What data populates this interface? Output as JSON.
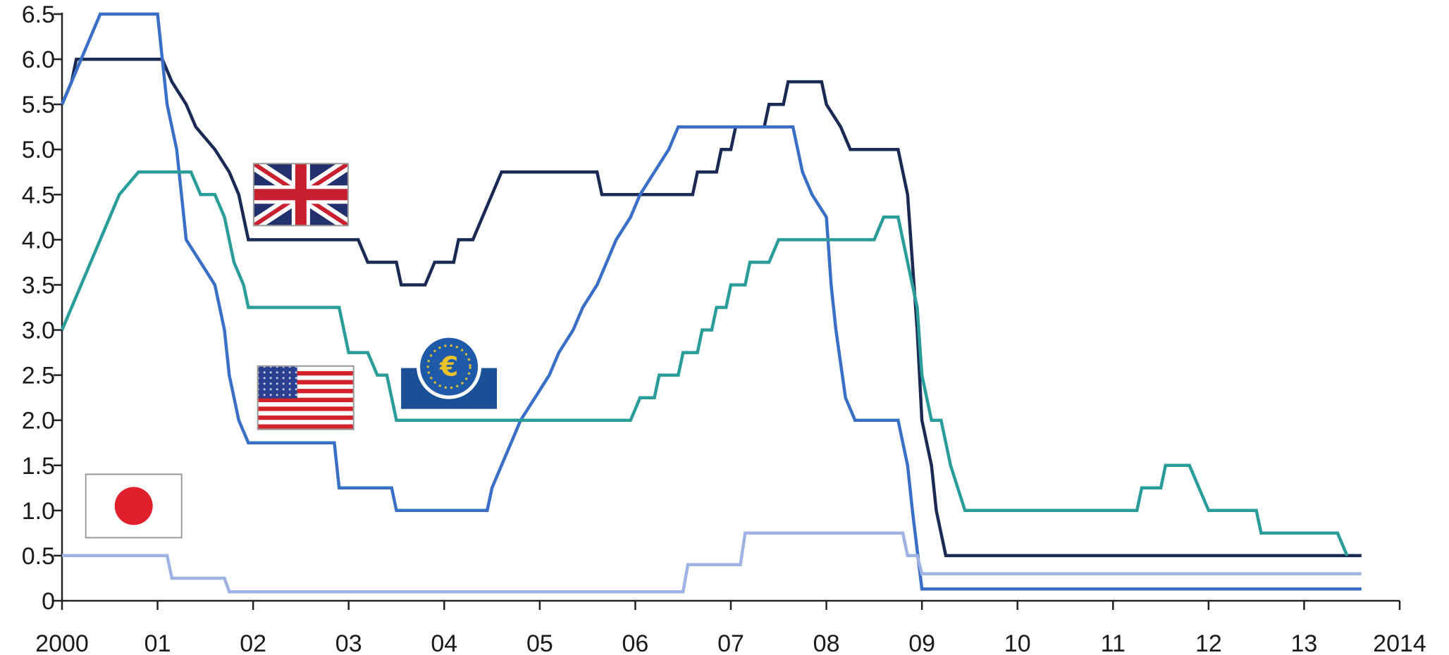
{
  "chart_data": {
    "type": "line",
    "title": "",
    "xlabel": "",
    "ylabel": "",
    "xlim": [
      2000,
      2014
    ],
    "ylim": [
      0,
      6.5
    ],
    "grid": false,
    "legend": "flag icons placed beside the lines",
    "y_ticks": [
      "0",
      "0.5",
      "1.0",
      "1.5",
      "2.0",
      "2.5",
      "3.0",
      "3.5",
      "4.0",
      "4.5",
      "5.0",
      "5.5",
      "6.0",
      "6.5"
    ],
    "x_ticks": [
      {
        "label": "2000",
        "x": 2000
      },
      {
        "label": "01",
        "x": 2001
      },
      {
        "label": "02",
        "x": 2002
      },
      {
        "label": "03",
        "x": 2003
      },
      {
        "label": "04",
        "x": 2004
      },
      {
        "label": "05",
        "x": 2005
      },
      {
        "label": "06",
        "x": 2006
      },
      {
        "label": "07",
        "x": 2007
      },
      {
        "label": "08",
        "x": 2008
      },
      {
        "label": "09",
        "x": 2009
      },
      {
        "label": "10",
        "x": 2010
      },
      {
        "label": "11",
        "x": 2011
      },
      {
        "label": "12",
        "x": 2012
      },
      {
        "label": "13",
        "x": 2013
      },
      {
        "label": "2014",
        "x": 2014
      }
    ],
    "series": [
      {
        "key": "uk",
        "color": "#1b2a55",
        "icon": "uk-flag-icon",
        "points": [
          [
            2000.0,
            5.5
          ],
          [
            2000.1,
            5.75
          ],
          [
            2000.15,
            6.0
          ],
          [
            2001.05,
            6.0
          ],
          [
            2001.15,
            5.75
          ],
          [
            2001.3,
            5.5
          ],
          [
            2001.4,
            5.25
          ],
          [
            2001.6,
            5.0
          ],
          [
            2001.75,
            4.75
          ],
          [
            2001.85,
            4.5
          ],
          [
            2001.9,
            4.25
          ],
          [
            2001.95,
            4.0
          ],
          [
            2003.1,
            4.0
          ],
          [
            2003.2,
            3.75
          ],
          [
            2003.5,
            3.75
          ],
          [
            2003.55,
            3.5
          ],
          [
            2003.8,
            3.5
          ],
          [
            2003.9,
            3.75
          ],
          [
            2004.1,
            3.75
          ],
          [
            2004.15,
            4.0
          ],
          [
            2004.3,
            4.0
          ],
          [
            2004.4,
            4.25
          ],
          [
            2004.5,
            4.5
          ],
          [
            2004.6,
            4.75
          ],
          [
            2005.6,
            4.75
          ],
          [
            2005.65,
            4.5
          ],
          [
            2006.6,
            4.5
          ],
          [
            2006.65,
            4.75
          ],
          [
            2006.85,
            4.75
          ],
          [
            2006.9,
            5.0
          ],
          [
            2007.0,
            5.0
          ],
          [
            2007.05,
            5.25
          ],
          [
            2007.35,
            5.25
          ],
          [
            2007.4,
            5.5
          ],
          [
            2007.55,
            5.5
          ],
          [
            2007.6,
            5.75
          ],
          [
            2007.95,
            5.75
          ],
          [
            2008.0,
            5.5
          ],
          [
            2008.15,
            5.25
          ],
          [
            2008.25,
            5.0
          ],
          [
            2008.75,
            5.0
          ],
          [
            2008.85,
            4.5
          ],
          [
            2008.95,
            3.0
          ],
          [
            2009.0,
            2.0
          ],
          [
            2009.1,
            1.5
          ],
          [
            2009.15,
            1.0
          ],
          [
            2009.25,
            0.5
          ],
          [
            2013.6,
            0.5
          ]
        ]
      },
      {
        "key": "us",
        "color": "#3a6fc6",
        "icon": "us-flag-icon",
        "points": [
          [
            2000.0,
            5.5
          ],
          [
            2000.1,
            5.75
          ],
          [
            2000.2,
            6.0
          ],
          [
            2000.3,
            6.25
          ],
          [
            2000.4,
            6.5
          ],
          [
            2001.0,
            6.5
          ],
          [
            2001.05,
            6.0
          ],
          [
            2001.1,
            5.5
          ],
          [
            2001.2,
            5.0
          ],
          [
            2001.25,
            4.5
          ],
          [
            2001.3,
            4.0
          ],
          [
            2001.45,
            3.75
          ],
          [
            2001.6,
            3.5
          ],
          [
            2001.7,
            3.0
          ],
          [
            2001.75,
            2.5
          ],
          [
            2001.85,
            2.0
          ],
          [
            2001.95,
            1.75
          ],
          [
            2002.85,
            1.75
          ],
          [
            2002.9,
            1.25
          ],
          [
            2003.45,
            1.25
          ],
          [
            2003.5,
            1.0
          ],
          [
            2004.45,
            1.0
          ],
          [
            2004.5,
            1.25
          ],
          [
            2004.6,
            1.5
          ],
          [
            2004.7,
            1.75
          ],
          [
            2004.8,
            2.0
          ],
          [
            2004.95,
            2.25
          ],
          [
            2005.1,
            2.5
          ],
          [
            2005.2,
            2.75
          ],
          [
            2005.35,
            3.0
          ],
          [
            2005.45,
            3.25
          ],
          [
            2005.6,
            3.5
          ],
          [
            2005.7,
            3.75
          ],
          [
            2005.8,
            4.0
          ],
          [
            2005.95,
            4.25
          ],
          [
            2006.05,
            4.5
          ],
          [
            2006.2,
            4.75
          ],
          [
            2006.35,
            5.0
          ],
          [
            2006.45,
            5.25
          ],
          [
            2007.65,
            5.25
          ],
          [
            2007.75,
            4.75
          ],
          [
            2007.85,
            4.5
          ],
          [
            2008.0,
            4.25
          ],
          [
            2008.05,
            3.5
          ],
          [
            2008.1,
            3.0
          ],
          [
            2008.2,
            2.25
          ],
          [
            2008.3,
            2.0
          ],
          [
            2008.75,
            2.0
          ],
          [
            2008.85,
            1.5
          ],
          [
            2008.9,
            1.0
          ],
          [
            2009.0,
            0.13
          ],
          [
            2013.6,
            0.13
          ]
        ]
      },
      {
        "key": "ez",
        "color": "#2a9d9a",
        "icon": "ecb-euro-icon",
        "points": [
          [
            2000.0,
            3.0
          ],
          [
            2000.1,
            3.25
          ],
          [
            2000.2,
            3.5
          ],
          [
            2000.3,
            3.75
          ],
          [
            2000.4,
            4.0
          ],
          [
            2000.5,
            4.25
          ],
          [
            2000.6,
            4.5
          ],
          [
            2000.8,
            4.75
          ],
          [
            2001.35,
            4.75
          ],
          [
            2001.45,
            4.5
          ],
          [
            2001.6,
            4.5
          ],
          [
            2001.7,
            4.25
          ],
          [
            2001.8,
            3.75
          ],
          [
            2001.9,
            3.5
          ],
          [
            2001.95,
            3.25
          ],
          [
            2002.9,
            3.25
          ],
          [
            2003.0,
            2.75
          ],
          [
            2003.2,
            2.75
          ],
          [
            2003.3,
            2.5
          ],
          [
            2003.4,
            2.5
          ],
          [
            2003.5,
            2.0
          ],
          [
            2005.95,
            2.0
          ],
          [
            2006.05,
            2.25
          ],
          [
            2006.2,
            2.25
          ],
          [
            2006.25,
            2.5
          ],
          [
            2006.45,
            2.5
          ],
          [
            2006.5,
            2.75
          ],
          [
            2006.65,
            2.75
          ],
          [
            2006.7,
            3.0
          ],
          [
            2006.8,
            3.0
          ],
          [
            2006.85,
            3.25
          ],
          [
            2006.95,
            3.25
          ],
          [
            2007.0,
            3.5
          ],
          [
            2007.15,
            3.5
          ],
          [
            2007.2,
            3.75
          ],
          [
            2007.4,
            3.75
          ],
          [
            2007.5,
            4.0
          ],
          [
            2008.5,
            4.0
          ],
          [
            2008.6,
            4.25
          ],
          [
            2008.75,
            4.25
          ],
          [
            2008.85,
            3.75
          ],
          [
            2008.95,
            3.25
          ],
          [
            2009.0,
            2.5
          ],
          [
            2009.1,
            2.0
          ],
          [
            2009.2,
            2.0
          ],
          [
            2009.3,
            1.5
          ],
          [
            2009.45,
            1.0
          ],
          [
            2011.25,
            1.0
          ],
          [
            2011.3,
            1.25
          ],
          [
            2011.5,
            1.25
          ],
          [
            2011.55,
            1.5
          ],
          [
            2011.8,
            1.5
          ],
          [
            2011.9,
            1.25
          ],
          [
            2012.0,
            1.0
          ],
          [
            2012.5,
            1.0
          ],
          [
            2012.55,
            0.75
          ],
          [
            2013.35,
            0.75
          ],
          [
            2013.45,
            0.5
          ]
        ]
      },
      {
        "key": "jp",
        "color": "#9fb2e4",
        "icon": "japan-flag-icon",
        "points": [
          [
            2000.0,
            0.5
          ],
          [
            2001.1,
            0.5
          ],
          [
            2001.15,
            0.25
          ],
          [
            2001.7,
            0.25
          ],
          [
            2001.75,
            0.1
          ],
          [
            2006.5,
            0.1
          ],
          [
            2006.55,
            0.4
          ],
          [
            2007.1,
            0.4
          ],
          [
            2007.15,
            0.75
          ],
          [
            2008.8,
            0.75
          ],
          [
            2008.85,
            0.5
          ],
          [
            2008.95,
            0.5
          ],
          [
            2009.0,
            0.3
          ],
          [
            2013.6,
            0.3
          ]
        ]
      }
    ],
    "icons": [
      {
        "name": "uk-flag-icon",
        "x": 2002.5,
        "y": 4.5
      },
      {
        "name": "us-flag-icon",
        "x": 2002.55,
        "y": 2.25
      },
      {
        "name": "ecb-euro-icon",
        "x": 2004.05,
        "y": 2.5
      },
      {
        "name": "japan-flag-icon",
        "x": 2000.75,
        "y": 1.05
      }
    ]
  }
}
